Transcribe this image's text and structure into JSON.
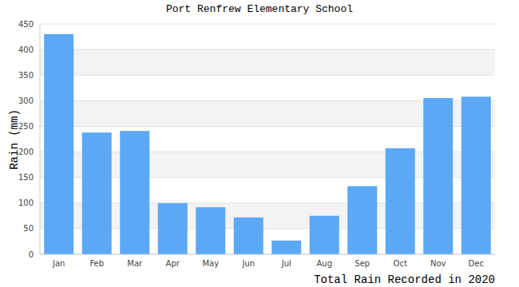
{
  "chart_data": {
    "type": "bar",
    "title": "Port Renfrew Elementary School",
    "y_label": "Rain (mm)",
    "x_label": "Total Rain Recorded in 2020",
    "categories": [
      "Jan",
      "Feb",
      "Mar",
      "Apr",
      "May",
      "Jun",
      "Jul",
      "Aug",
      "Sep",
      "Oct",
      "Nov",
      "Dec"
    ],
    "values": [
      430,
      238,
      241,
      100,
      92,
      72,
      27,
      75,
      133,
      207,
      305,
      308
    ],
    "color": "#5ba8f5",
    "ylim": [
      0,
      450
    ],
    "yticks": [
      0,
      50,
      100,
      150,
      200,
      250,
      300,
      350,
      400,
      450
    ],
    "grid": true
  }
}
